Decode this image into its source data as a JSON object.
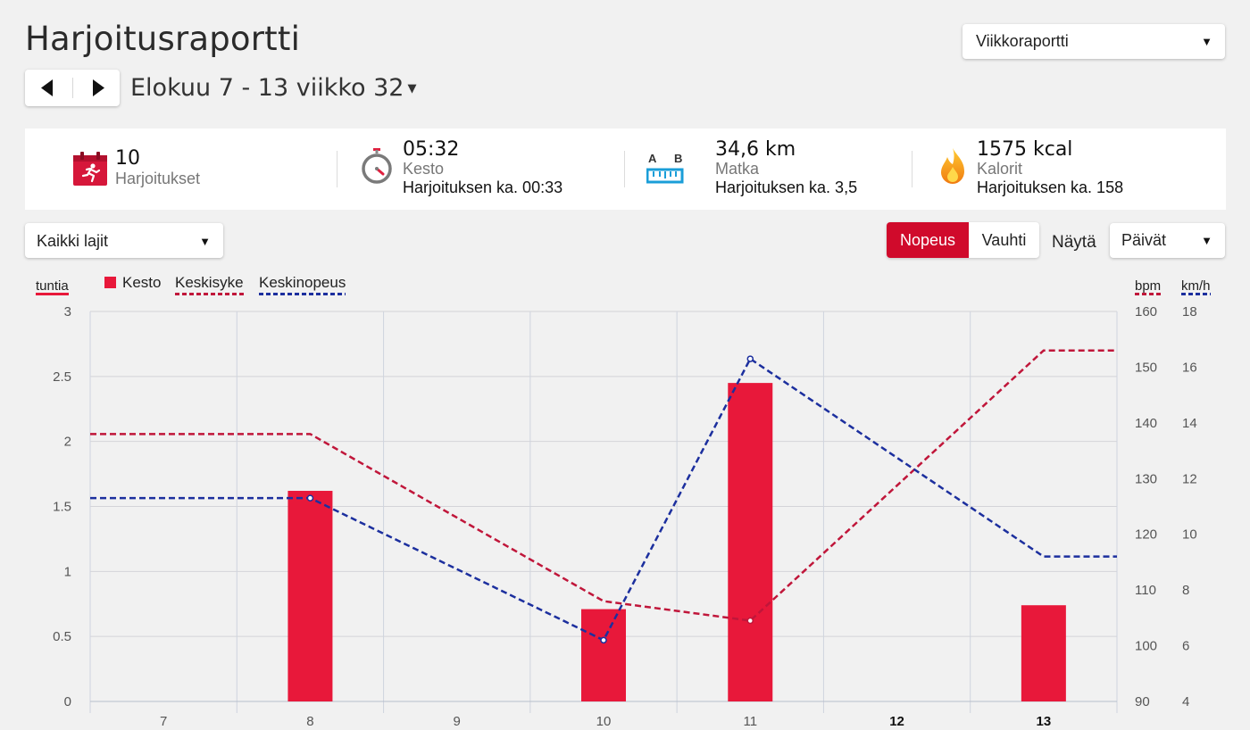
{
  "header": {
    "title": "Harjoitusraportti",
    "report_select": "Viikkoraportti",
    "period": "Elokuu 7 - 13 viikko 32"
  },
  "summary": {
    "sessions": {
      "value": "10",
      "label": "Harjoitukset",
      "icon": "calendar-runner-icon"
    },
    "duration": {
      "value": "05:32",
      "label": "Kesto",
      "avg": "Harjoituksen ka. 00:33",
      "icon": "stopwatch-icon"
    },
    "distance": {
      "value": "34,6 km",
      "label": "Matka",
      "avg": "Harjoituksen ka. 3,5",
      "icon": "distance-ruler-icon",
      "icon_letters": [
        "A",
        "B"
      ]
    },
    "calories": {
      "value": "1575 kcal",
      "label": "Kalorit",
      "avg": "Harjoituksen ka. 158",
      "icon": "flame-icon"
    }
  },
  "controls": {
    "sport_select": "Kaikki lajit",
    "toggle": [
      "Nopeus",
      "Vauhti"
    ],
    "toggle_active": "Nopeus",
    "show_label": "Näytä",
    "days_select": "Päivät"
  },
  "colors": {
    "accent": "#d00a2b",
    "bar": "#e8183a",
    "heart_rate": "#c0163a",
    "speed": "#1c2f9e"
  },
  "chart_data": {
    "type": "bar",
    "categories": [
      "7",
      "8",
      "9",
      "10",
      "11",
      "12",
      "13"
    ],
    "bold_categories": [
      "12",
      "13"
    ],
    "left_axis": {
      "unit": "tuntia",
      "ylim": [
        0,
        3
      ],
      "ticks": [
        "0",
        "0.5",
        "1",
        "1.5",
        "2",
        "2.5",
        "3"
      ]
    },
    "right_axis_hr": {
      "unit": "bpm",
      "ylim": [
        90,
        160
      ],
      "ticks": [
        "90",
        "100",
        "110",
        "120",
        "130",
        "140",
        "150",
        "160"
      ]
    },
    "right_axis_speed": {
      "unit": "km/h",
      "ylim": [
        4,
        18
      ],
      "ticks": [
        "4",
        "6",
        "8",
        "10",
        "12",
        "14",
        "16",
        "18"
      ]
    },
    "grid": true,
    "legend": [
      "Kesto",
      "Keskisyke",
      "Keskinopeus"
    ],
    "series": [
      {
        "name": "Kesto",
        "kind": "bar",
        "axis": "left",
        "values": [
          null,
          1.62,
          null,
          0.71,
          2.45,
          null,
          0.74
        ]
      },
      {
        "name": "Keskisyke",
        "kind": "dashed-line",
        "axis": "right_hr",
        "points": [
          [
            "7",
            138
          ],
          [
            "8",
            138
          ],
          [
            "10",
            108
          ],
          [
            "11",
            104.5
          ],
          [
            "13",
            153
          ]
        ],
        "markers": [
          "11"
        ],
        "extends_to_edges": true
      },
      {
        "name": "Keskinopeus",
        "kind": "dashed-line",
        "axis": "right_speed",
        "points": [
          [
            "7",
            11.3
          ],
          [
            "8",
            11.3
          ],
          [
            "10",
            6.2
          ],
          [
            "11",
            16.3
          ],
          [
            "13",
            9.2
          ]
        ],
        "markers": [
          "8",
          "10",
          "11"
        ],
        "extends_to_edges": true
      }
    ]
  }
}
